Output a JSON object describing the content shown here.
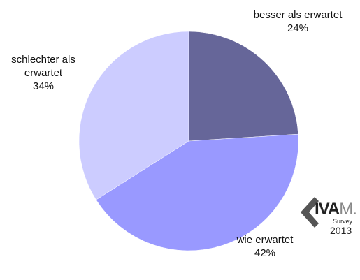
{
  "chart_data": {
    "type": "pie",
    "categories": [
      "besser als erwartet",
      "wie erwartet",
      "schlechter als erwartet"
    ],
    "values": [
      24,
      42,
      34
    ],
    "value_labels": [
      "24%",
      "42%",
      "34%"
    ],
    "colors": [
      "#666699",
      "#9999ff",
      "#ccccff"
    ]
  },
  "logo": {
    "name": "IVA",
    "suffix": "M.",
    "sub": "Survey",
    "year": "2013"
  }
}
